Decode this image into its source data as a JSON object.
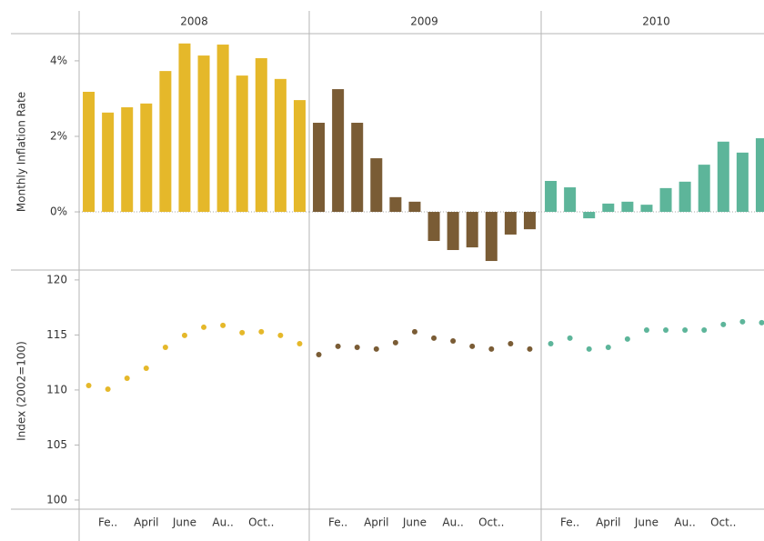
{
  "chart_data": [
    {
      "type": "bar",
      "y_label": "Monthly Inflation Rate",
      "series": [
        {
          "name": "2008",
          "color": "#e5b82a",
          "values": [
            3.18,
            2.63,
            2.77,
            2.87,
            3.73,
            4.46,
            4.14,
            4.43,
            3.61,
            4.07,
            3.52,
            2.96
          ]
        },
        {
          "name": "2009",
          "color": "#7a5c35",
          "values": [
            2.36,
            3.25,
            2.36,
            1.42,
            0.39,
            0.27,
            -0.77,
            -1.01,
            -0.94,
            -1.3,
            -0.6,
            -0.46
          ]
        },
        {
          "name": "2010",
          "color": "#5db59a",
          "values": [
            0.82,
            0.65,
            -0.17,
            0.22,
            0.27,
            0.19,
            0.63,
            0.8,
            1.25,
            1.86,
            1.57,
            1.95
          ]
        }
      ],
      "ylim": [
        -1.54,
        4.72
      ],
      "yticks": [
        {
          "value": 0,
          "label": "0%"
        },
        {
          "value": 2,
          "label": "2%"
        },
        {
          "value": 4,
          "label": "4%"
        }
      ]
    },
    {
      "type": "dot",
      "y_label": "Index (2002=100)",
      "categories": [
        null,
        "Fe..",
        null,
        "April",
        null,
        "June",
        null,
        "Au..",
        null,
        "Oct..",
        null,
        null
      ],
      "series": [
        {
          "name": "2008",
          "color": "#e5b82a",
          "values": [
            110.41,
            110.08,
            111.07,
            111.98,
            113.88,
            114.96,
            115.7,
            115.87,
            115.21,
            115.29,
            114.96,
            114.21
          ]
        },
        {
          "name": "2009",
          "color": "#7a5c35",
          "values": [
            113.22,
            113.97,
            113.88,
            113.72,
            114.3,
            115.29,
            114.71,
            114.46,
            113.97,
            113.72,
            114.21,
            113.72
          ]
        },
        {
          "name": "2010",
          "color": "#5db59a",
          "values": [
            114.21,
            114.71,
            113.72,
            113.88,
            114.63,
            115.45,
            115.45,
            115.45,
            115.45,
            115.95,
            116.2,
            116.12
          ]
        }
      ],
      "ylim": [
        99.17,
        120.9
      ],
      "yticks": [
        100,
        105,
        110,
        115,
        120
      ]
    }
  ]
}
